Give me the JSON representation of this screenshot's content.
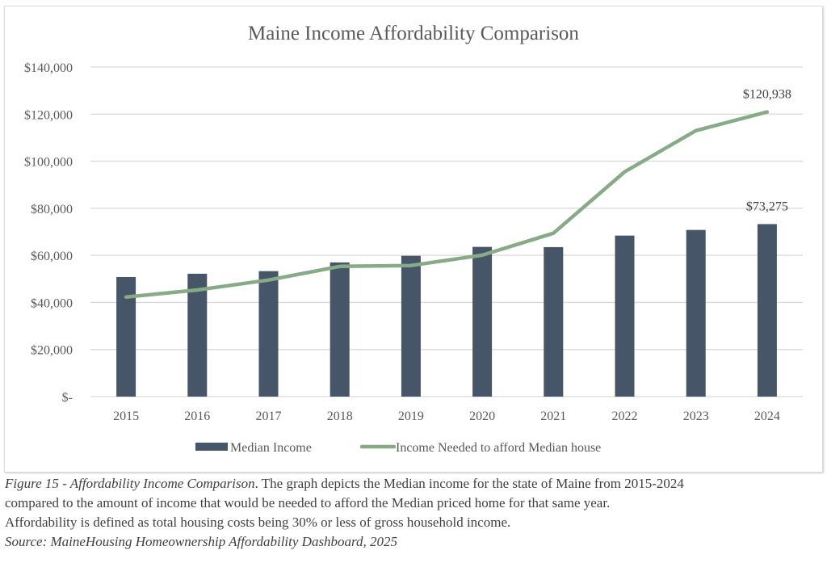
{
  "chart_data": {
    "type": "bar",
    "title": "Maine Income Affordability Comparison",
    "xlabel": "",
    "ylabel": "",
    "categories": [
      "2015",
      "2016",
      "2017",
      "2018",
      "2019",
      "2020",
      "2021",
      "2022",
      "2023",
      "2024"
    ],
    "series": [
      {
        "name": "Median Income",
        "type": "bar",
        "color": "#465567",
        "values": [
          50800,
          52200,
          53300,
          57000,
          59800,
          63600,
          63500,
          68400,
          70800,
          73275
        ]
      },
      {
        "name": "Income Needed to afford Median house",
        "type": "line",
        "color": "#86ab86",
        "values": [
          42300,
          45300,
          49500,
          55300,
          55700,
          60100,
          69400,
          95500,
          113000,
          120938
        ]
      }
    ],
    "data_labels": [
      {
        "series": "Income Needed to afford Median house",
        "category": "2024",
        "text": "$120,938"
      },
      {
        "series": "Median Income",
        "category": "2024",
        "text": "$73,275"
      }
    ],
    "ylim": [
      0,
      140000
    ],
    "yticks": [
      0,
      20000,
      40000,
      60000,
      80000,
      100000,
      120000,
      140000
    ],
    "ytick_labels": [
      "$-",
      "$20,000",
      "$40,000",
      "$60,000",
      "$80,000",
      "$100,000",
      "$120,000",
      "$140,000"
    ],
    "grid": true,
    "legend": "bottom"
  },
  "caption": {
    "figure_label": "Figure 15 - Affordability Income Comparison",
    "line1_rest": ". The graph depicts the Median income for the state of Maine from 2015-2024",
    "line2": "compared to the amount of income that would be needed to afford the Median priced home for that same year.",
    "line3": "Affordability is defined as total housing costs being 30% or less of gross household income.",
    "source": "Source: MaineHousing Homeownership Affordability Dashboard, 2025"
  }
}
